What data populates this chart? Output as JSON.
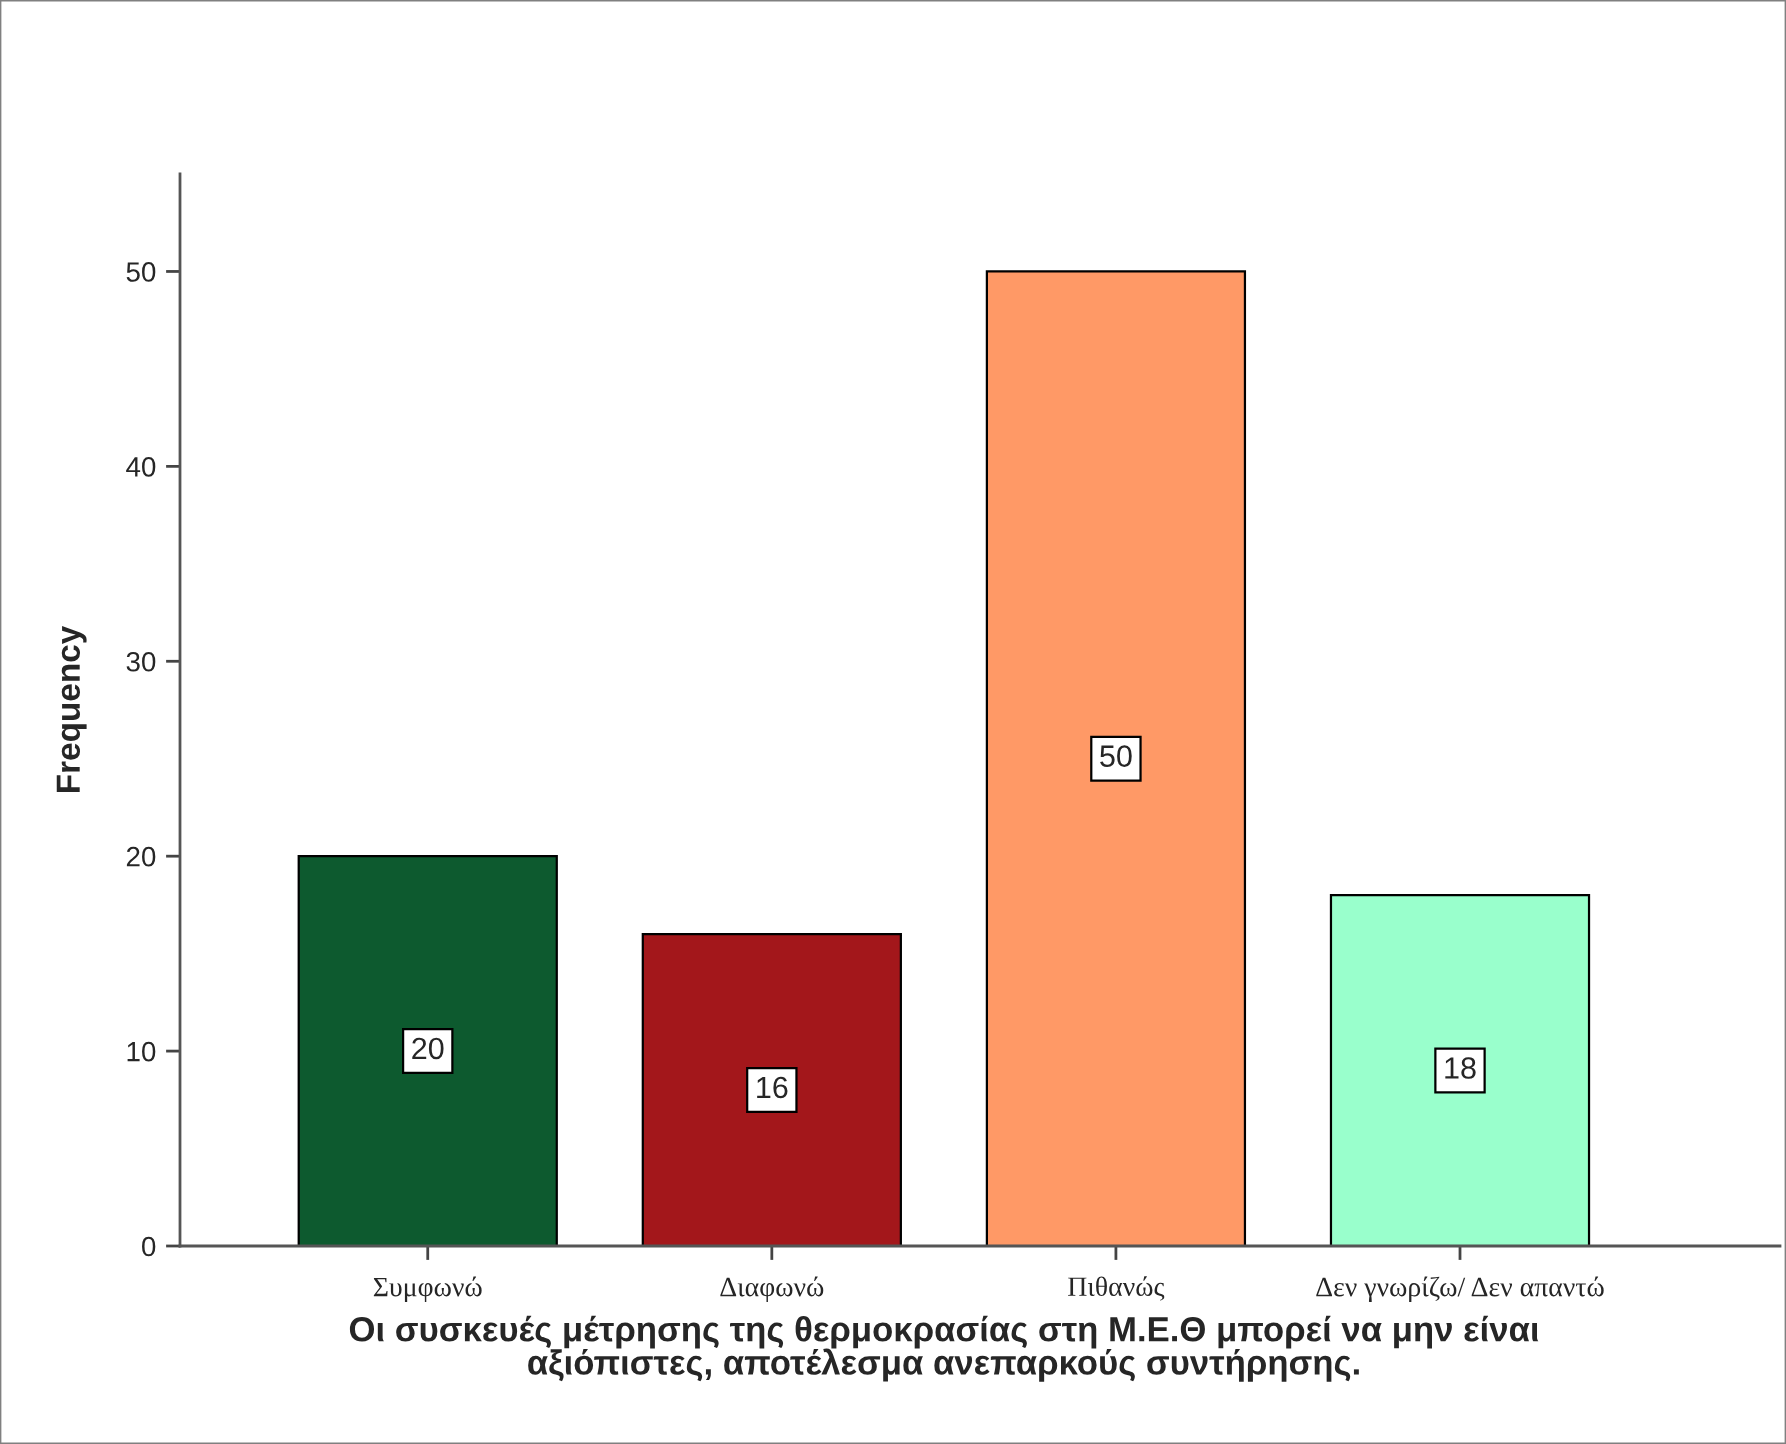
{
  "chart_data": {
    "type": "bar",
    "xlabel": "Οι συσκευές μέτρησης της θερμοκρασίας στη Μ.Ε.Θ μπορεί να μην είναι\nαξιόπιστες, αποτέλεσμα ανεπαρκούς συντήρησης.",
    "ylabel": "Frequency",
    "categories": [
      "Συμφωνώ",
      "Διαφωνώ",
      "Πιθανώς",
      "Δεν γνωρίζω/ Δεν απαντώ"
    ],
    "values": [
      20,
      16,
      50,
      18
    ],
    "colors": [
      "#0d5a2f",
      "#a3171b",
      "#ff9966",
      "#99ffcc"
    ],
    "ylim": [
      0,
      55
    ],
    "yticks": [
      0,
      10,
      20,
      30,
      40,
      50
    ],
    "data_labels": true
  }
}
